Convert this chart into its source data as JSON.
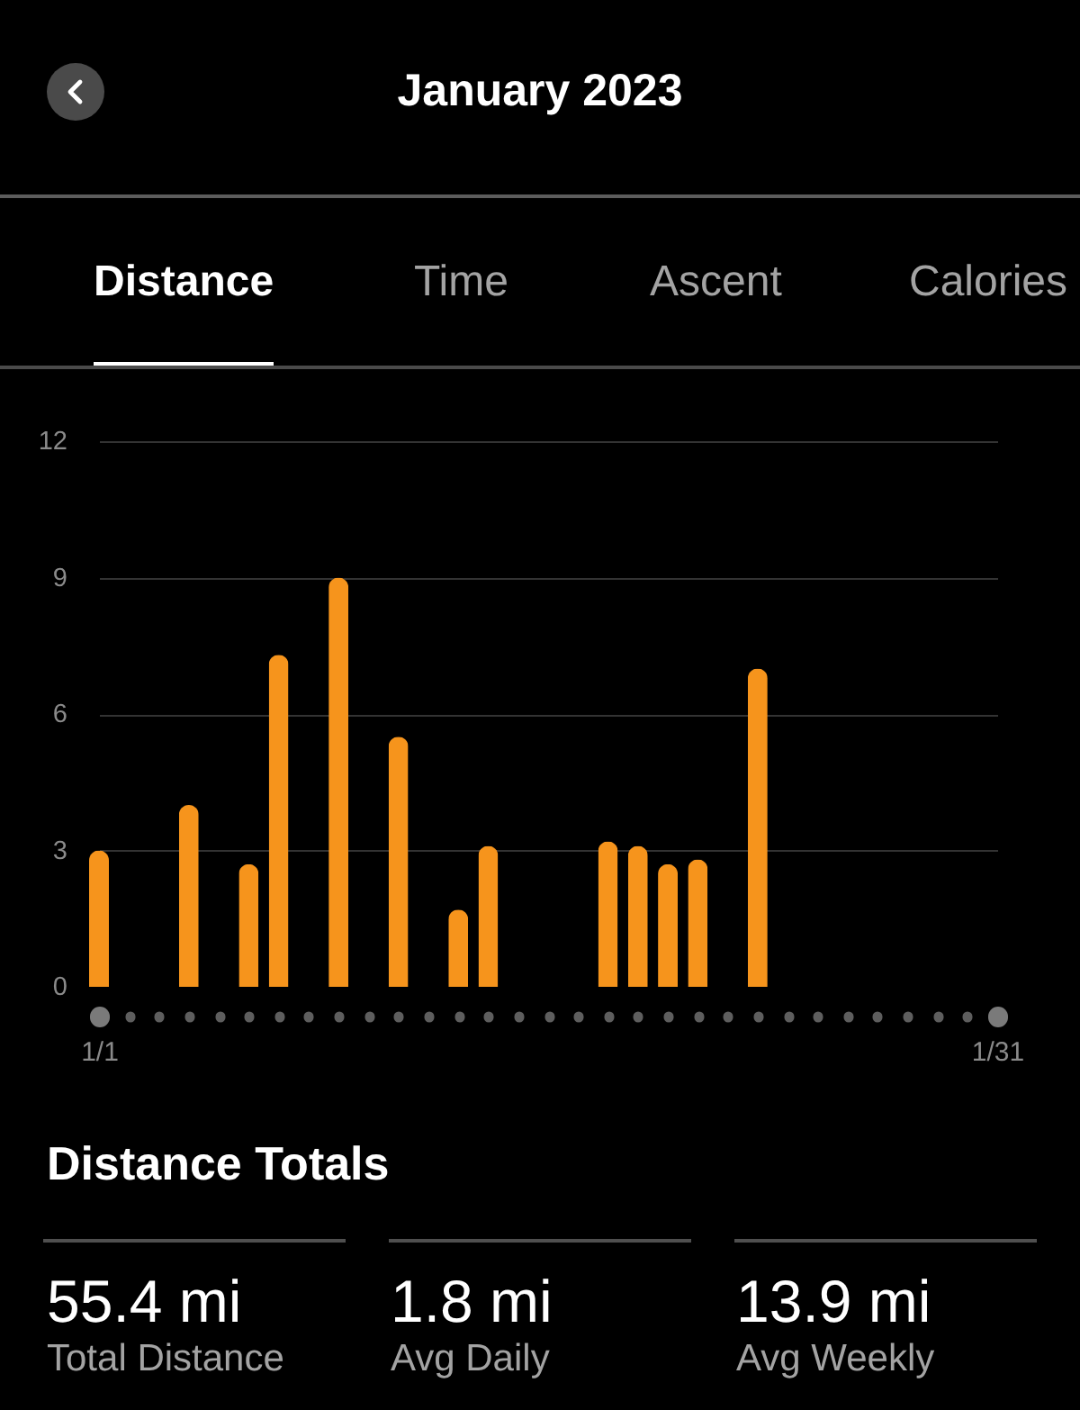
{
  "chart_data": {
    "type": "bar",
    "title": "January 2023",
    "annotations": [
      "Distance",
      "Time",
      "Ascent",
      "Calories",
      "Distance Totals",
      "55.4 mi",
      "Total Distance",
      "1.8 mi",
      "Avg Daily",
      "13.9 mi",
      "Avg Weekly"
    ],
    "categories": [
      "1/1",
      null,
      null,
      null,
      null,
      null,
      null,
      null,
      null,
      null,
      null,
      null,
      null,
      null,
      null,
      null,
      null,
      null,
      null,
      null,
      null,
      null,
      null,
      null,
      null,
      null,
      null,
      null,
      null,
      null,
      "1/31"
    ],
    "values": [
      3.0,
      null,
      null,
      4.0,
      null,
      2.7,
      7.3,
      null,
      9.0,
      null,
      5.5,
      null,
      1.7,
      3.1,
      null,
      null,
      null,
      3.2,
      3.1,
      2.7,
      2.8,
      null,
      7.0,
      null,
      null,
      null,
      null,
      null,
      null,
      null,
      null
    ],
    "color": "#f6941c",
    "ylim": [
      0,
      12
    ],
    "yticks": [
      0,
      3,
      6,
      9,
      12
    ],
    "grid": "y"
  }
}
